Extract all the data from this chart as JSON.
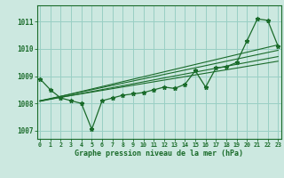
{
  "xlabel": "Graphe pression niveau de la mer (hPa)",
  "background_color": "#cce8e0",
  "grid_color": "#99cfc4",
  "line_color": "#1a6b2a",
  "x_values": [
    0,
    1,
    2,
    3,
    4,
    5,
    6,
    7,
    8,
    9,
    10,
    11,
    12,
    13,
    14,
    15,
    16,
    17,
    18,
    19,
    20,
    21,
    22,
    23
  ],
  "y_values": [
    1008.9,
    1008.5,
    1008.2,
    1008.1,
    1008.0,
    1007.05,
    1008.1,
    1008.2,
    1008.3,
    1008.35,
    1008.4,
    1008.5,
    1008.6,
    1008.55,
    1008.7,
    1009.2,
    1008.6,
    1009.3,
    1009.35,
    1009.5,
    1010.3,
    1011.1,
    1011.05,
    1010.1
  ],
  "ylim": [
    1006.7,
    1011.6
  ],
  "yticks": [
    1007,
    1008,
    1009,
    1010,
    1011
  ],
  "trend_lines": [
    [
      0,
      1008.08,
      23,
      1010.15
    ],
    [
      0,
      1008.08,
      23,
      1009.72
    ],
    [
      0,
      1008.1,
      23,
      1009.95
    ],
    [
      0,
      1008.1,
      23,
      1009.55
    ]
  ]
}
